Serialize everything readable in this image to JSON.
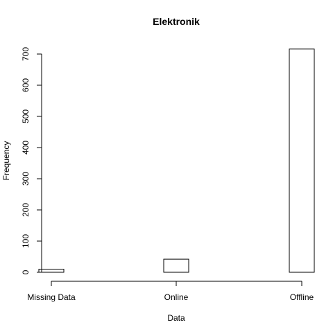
{
  "chart_data": {
    "type": "bar",
    "title": "Elektronik",
    "xlabel": "Data",
    "ylabel": "Frequency",
    "categories": [
      "Missing Data",
      "Online",
      "Offline"
    ],
    "values": [
      10,
      42,
      716
    ],
    "ylim": [
      0,
      730
    ],
    "yticks": [
      "0",
      "100",
      "200",
      "300",
      "400",
      "500",
      "600",
      "700"
    ],
    "grid": false,
    "legend": "none",
    "colors": {
      "bar_fill": "#ffffff",
      "bar_stroke": "#000000",
      "axis": "#000000"
    }
  }
}
